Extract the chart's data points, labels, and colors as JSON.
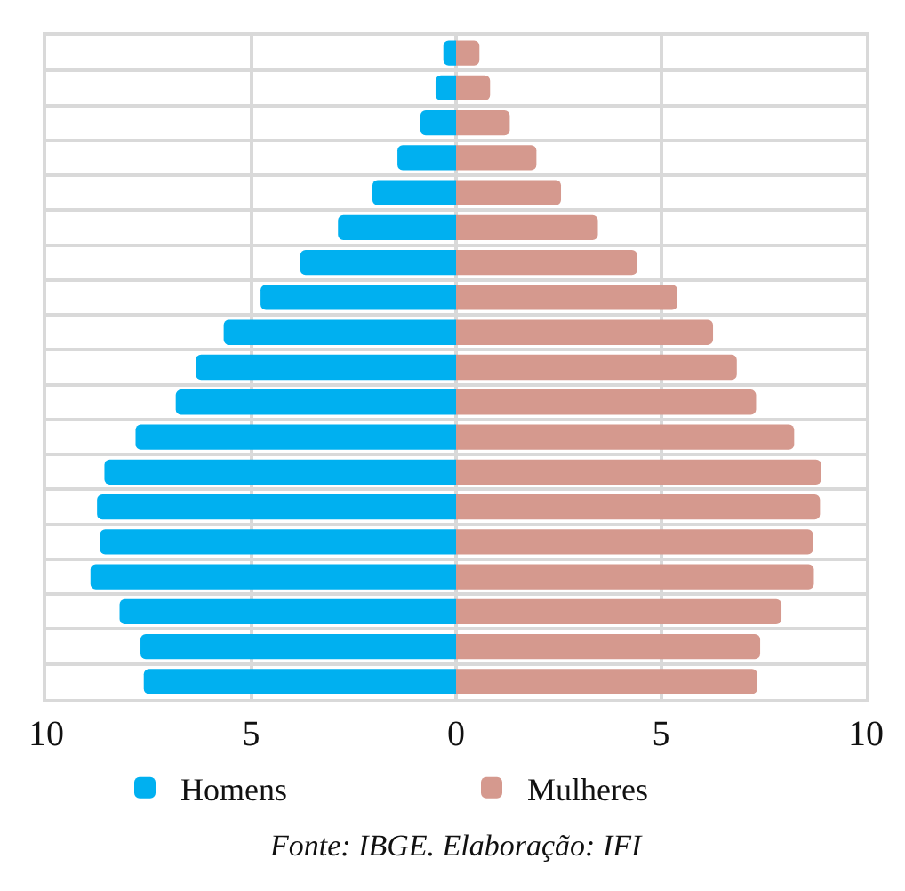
{
  "chart_data": {
    "type": "bar",
    "orientation": "horizontal",
    "stacked": true,
    "categories": [
      null,
      null,
      null,
      null,
      null,
      null,
      null,
      null,
      null,
      null,
      null,
      null,
      null,
      null,
      null,
      null,
      null,
      null,
      null
    ],
    "series": [
      {
        "name": "Homens",
        "color": "#00b0f0",
        "values": [
          -0.31,
          -0.5,
          -0.87,
          -1.43,
          -2.04,
          -2.88,
          -3.8,
          -4.77,
          -5.67,
          -6.35,
          -6.84,
          -7.82,
          -8.58,
          -8.76,
          -8.69,
          -8.92,
          -8.21,
          -7.7,
          -7.62
        ]
      },
      {
        "name": "Mulheres",
        "color": "#d5998e",
        "values": [
          0.57,
          0.83,
          1.31,
          1.96,
          2.56,
          3.46,
          4.42,
          5.4,
          6.27,
          6.85,
          7.32,
          8.25,
          8.91,
          8.88,
          8.71,
          8.73,
          7.94,
          7.42,
          7.35
        ]
      }
    ],
    "xlim": [
      -10,
      10
    ],
    "xticks": [
      {
        "value": -10,
        "label": "10"
      },
      {
        "value": -5,
        "label": "5"
      },
      0,
      5,
      10
    ],
    "grid": true,
    "legend": "bottom",
    "tick_labels": "x",
    "annotations": [
      "Fonte: IBGE. Elaboração: IFI"
    ]
  }
}
